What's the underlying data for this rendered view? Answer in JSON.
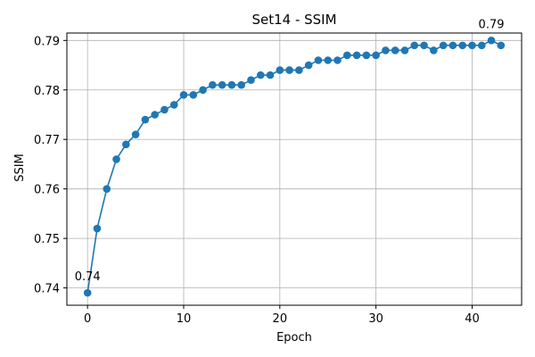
{
  "chart_data": {
    "type": "line",
    "title": "Set14 - SSIM",
    "xlabel": "Epoch",
    "ylabel": "SSIM",
    "xlim": [
      -2.15,
      45.15
    ],
    "ylim": [
      0.7365,
      0.7915
    ],
    "xticks": [
      0,
      10,
      20,
      30,
      40
    ],
    "yticks": [
      0.74,
      0.75,
      0.76,
      0.77,
      0.78,
      0.79
    ],
    "grid": true,
    "color": "#1f77b4",
    "x": [
      0,
      1,
      2,
      3,
      4,
      5,
      6,
      7,
      8,
      9,
      10,
      11,
      12,
      13,
      14,
      15,
      16,
      17,
      18,
      19,
      20,
      21,
      22,
      23,
      24,
      25,
      26,
      27,
      28,
      29,
      30,
      31,
      32,
      33,
      34,
      35,
      36,
      37,
      38,
      39,
      40,
      41,
      42,
      43
    ],
    "values": [
      0.739,
      0.752,
      0.76,
      0.766,
      0.769,
      0.771,
      0.774,
      0.775,
      0.776,
      0.777,
      0.779,
      0.779,
      0.78,
      0.781,
      0.781,
      0.781,
      0.781,
      0.782,
      0.783,
      0.783,
      0.784,
      0.784,
      0.784,
      0.785,
      0.786,
      0.786,
      0.786,
      0.787,
      0.787,
      0.787,
      0.787,
      0.788,
      0.788,
      0.788,
      0.789,
      0.789,
      0.788,
      0.789,
      0.789,
      0.789,
      0.789,
      0.789,
      0.79,
      0.789
    ],
    "annotations": [
      {
        "x": 0,
        "y": 0.739,
        "text": "0.74"
      },
      {
        "x": 42,
        "y": 0.79,
        "text": "0.79"
      }
    ]
  }
}
